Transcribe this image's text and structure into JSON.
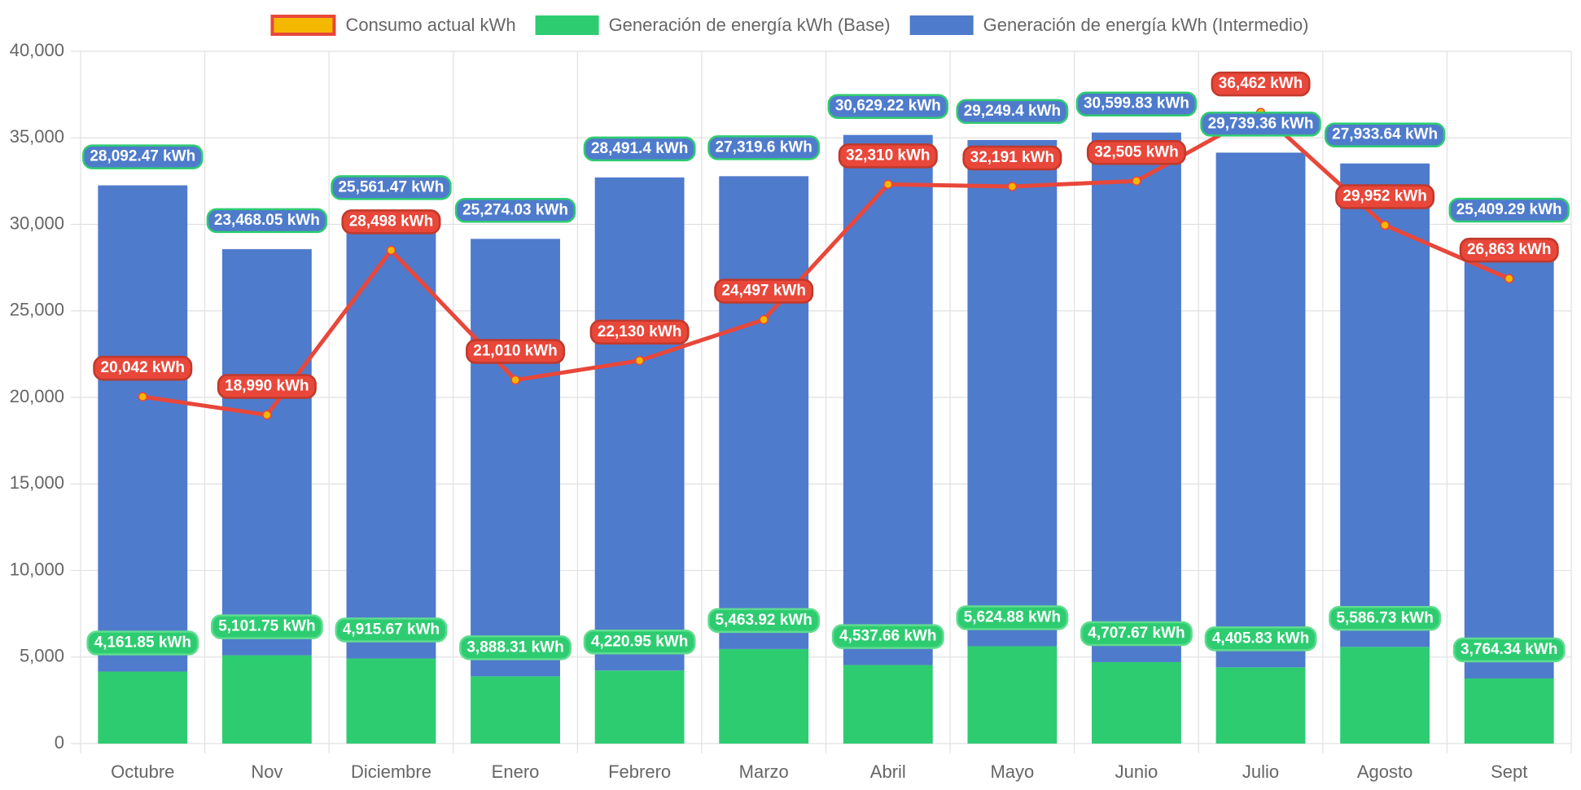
{
  "chart_data": {
    "type": "bar",
    "stacked": true,
    "categories": [
      "Octubre",
      "Nov",
      "Diciembre",
      "Enero",
      "Febrero",
      "Marzo",
      "Abril",
      "Mayo",
      "Junio",
      "Julio",
      "Agosto",
      "Sept"
    ],
    "series": [
      {
        "name": "Consumo actual kWh",
        "type": "line",
        "color": "#e8473a",
        "marker_color": "#f5b800",
        "values": [
          20042,
          18990,
          28498,
          21010,
          22130,
          24497,
          32310,
          32191,
          32505,
          36462,
          29952,
          26863
        ],
        "value_labels": [
          "20,042 kWh",
          "18,990 kWh",
          "28,498 kWh",
          "21,010 kWh",
          "22,130 kWh",
          "24,497 kWh",
          "32,310 kWh",
          "32,191 kWh",
          "32,505 kWh",
          "36,462 kWh",
          "29,952 kWh",
          "26,863 kWh"
        ]
      },
      {
        "name": "Generación de energía kWh (Base)",
        "type": "bar",
        "color": "#2ecc71",
        "values": [
          4161.85,
          5101.75,
          4915.67,
          3888.31,
          4220.95,
          5463.92,
          4537.66,
          5624.88,
          4707.67,
          4405.83,
          5586.73,
          3764.34
        ],
        "value_labels": [
          "4,161.85 kWh",
          "5,101.75 kWh",
          "4,915.67 kWh",
          "3,888.31 kWh",
          "4,220.95 kWh",
          "5,463.92 kWh",
          "4,537.66 kWh",
          "5,624.88 kWh",
          "4,707.67 kWh",
          "4,405.83 kWh",
          "5,586.73 kWh",
          "3,764.34 kWh"
        ]
      },
      {
        "name": "Generación de energía kWh (Intermedio)",
        "type": "bar",
        "color": "#4f7bcc",
        "values": [
          28092.47,
          23468.05,
          25561.47,
          25274.03,
          28491.4,
          27319.6,
          30629.22,
          29249.4,
          30599.83,
          29739.36,
          27933.64,
          25409.29
        ],
        "value_labels": [
          "28,092.47 kWh",
          "23,468.05 kWh",
          "25,561.47 kWh",
          "25,274.03 kWh",
          "28,491.4 kWh",
          "27,319.6 kWh",
          "30,629.22 kWh",
          "29,249.4 kWh",
          "30,599.83 kWh",
          "29,739.36 kWh",
          "27,933.64 kWh",
          "25,409.29 kWh"
        ]
      }
    ],
    "ylim": [
      0,
      40000
    ],
    "yticks": [
      0,
      {
        "value": 5000,
        "label": "5,000"
      },
      {
        "value": 10000,
        "label": "10,000"
      },
      {
        "value": 15000,
        "label": "15,000"
      },
      {
        "value": 20000,
        "label": "20,000"
      },
      {
        "value": 25000,
        "label": "25,000"
      },
      {
        "value": 30000,
        "label": "30,000"
      },
      {
        "value": 35000,
        "label": "35,000"
      },
      {
        "value": 40000,
        "label": "40,000"
      }
    ],
    "grid": true,
    "legend": "top"
  }
}
